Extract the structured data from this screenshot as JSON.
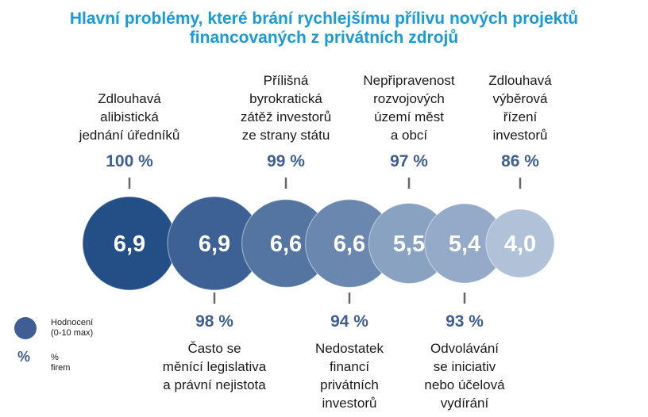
{
  "title": {
    "line1": "Hlavní problémy, které brání rychlejšímu přílivu nových projektů",
    "line2": "financovaných z privátních zdrojů"
  },
  "legend": {
    "rating_label_line1": "Hodnocení",
    "rating_label_line2": "(0-10 max)",
    "percent_symbol": "%",
    "percent_label": "% firem"
  },
  "colors": {
    "title": "#1b9ad6",
    "bubbles": [
      "#244e86",
      "#3e6195",
      "#5474a2",
      "#6a87b0",
      "#8aa2c2",
      "#94aac8",
      "#b1c2d8"
    ],
    "percent_text": "#3f5f94"
  },
  "chart_data": {
    "type": "bubble",
    "series": [
      {
        "name": "Hodnocení (0-10 max)",
        "values": [
          6.9,
          6.9,
          6.6,
          6.6,
          5.5,
          5.4,
          4.0
        ]
      },
      {
        "name": "% firem",
        "values": [
          100,
          98,
          99,
          94,
          97,
          93,
          86
        ]
      }
    ],
    "categories": [
      {
        "label_lines": [
          "Zdlouhavá",
          "alibistická",
          "jednání úředníků"
        ],
        "rating": "6,9",
        "percent": "100 %",
        "position": "top"
      },
      {
        "label_lines": [
          "Často se",
          "měnící legislativa",
          "a právní nejistota"
        ],
        "rating": "6,9",
        "percent": "98 %",
        "position": "bottom"
      },
      {
        "label_lines": [
          "Přílišná",
          "byrokratická",
          "zátěž investorů",
          "ze strany státu"
        ],
        "rating": "6,6",
        "percent": "99 %",
        "position": "top"
      },
      {
        "label_lines": [
          "Nedostatek",
          "financí",
          "privátních",
          "investorů"
        ],
        "rating": "6,6",
        "percent": "94 %",
        "position": "bottom"
      },
      {
        "label_lines": [
          "Nepřipravenost",
          "rozvojových",
          "území měst",
          "a obcí"
        ],
        "rating": "5,5",
        "percent": "97 %",
        "position": "top"
      },
      {
        "label_lines": [
          "Odvolávání",
          "se iniciativ",
          "nebo účelová",
          "vydírání"
        ],
        "rating": "5,4",
        "percent": "93 %",
        "position": "bottom"
      },
      {
        "label_lines": [
          "Zdlouhavá",
          "výběrová",
          "řízení",
          "investorů"
        ],
        "rating": "4,0",
        "percent": "86 %",
        "position": "top"
      }
    ]
  }
}
